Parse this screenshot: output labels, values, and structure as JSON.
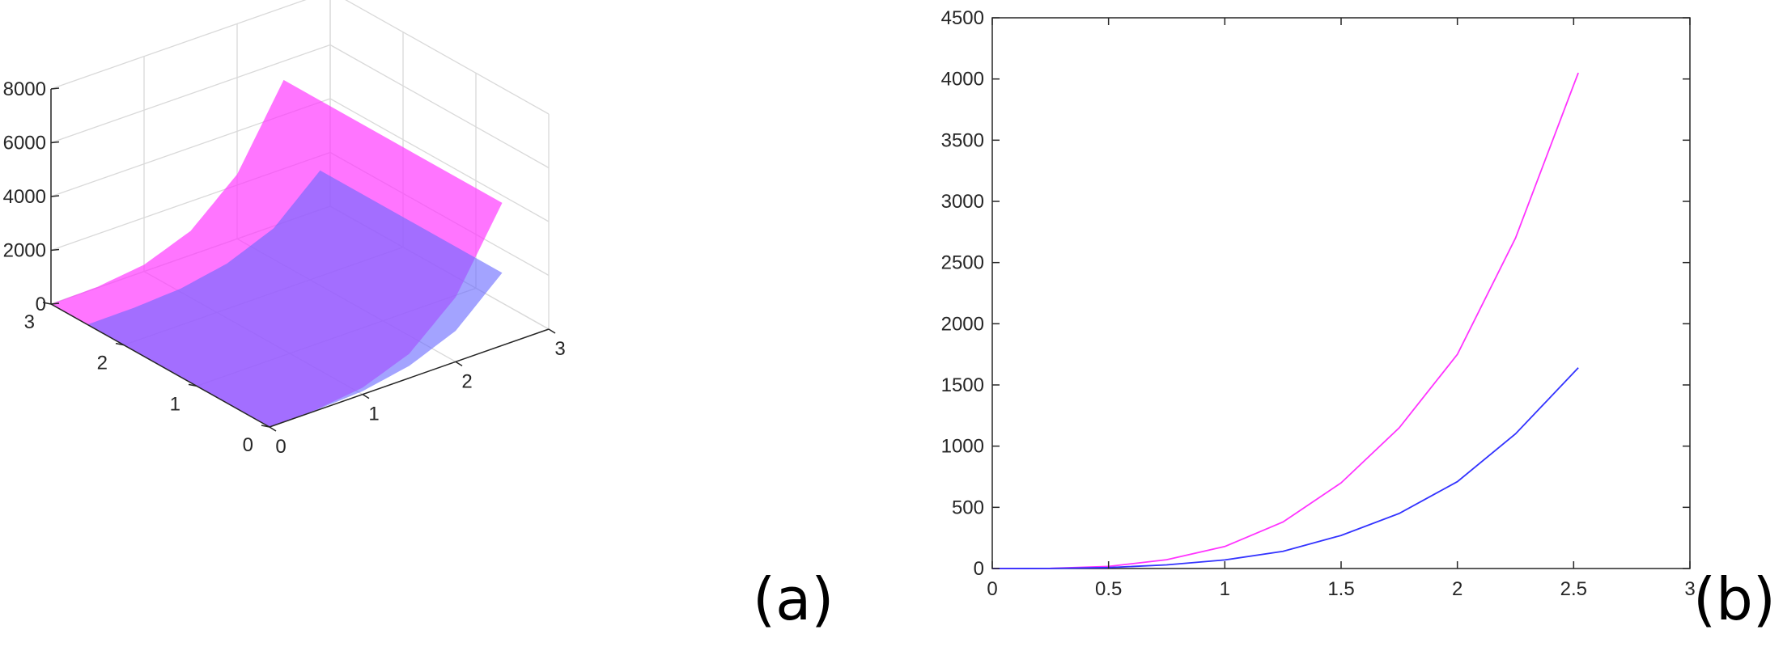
{
  "figure": {
    "panels": [
      "(a)",
      "(b)"
    ]
  },
  "chart_data": [
    {
      "type": "surface",
      "panel": "(a)",
      "title": "",
      "xlabel": "",
      "ylabel": "",
      "zlabel": "",
      "xlim": [
        0,
        3
      ],
      "ylim": [
        0,
        3
      ],
      "zlim": [
        0,
        8000
      ],
      "x_ticks": [
        "0",
        "1",
        "2",
        "3"
      ],
      "y_ticks": [
        "0",
        "1",
        "2",
        "3"
      ],
      "z_ticks": [
        "0",
        "2000",
        "4000",
        "6000",
        "8000"
      ],
      "grid": true,
      "series": [
        {
          "color": "#ff33ff",
          "x_range": [
            0,
            2.5
          ],
          "y_range": [
            0,
            3
          ],
          "z_at_x": [
            [
              0,
              0
            ],
            [
              0.5,
              35
            ],
            [
              1,
              250
            ],
            [
              1.5,
              900
            ],
            [
              2,
              2400
            ],
            [
              2.5,
              5300
            ]
          ],
          "z_at_max_x_min_y": 5300,
          "z_at_max_x_max_y": 5300
        },
        {
          "color": "#6b6bff",
          "x_range": [
            0,
            2.5
          ],
          "y_range": [
            0,
            2.5
          ],
          "z_at_x": [
            [
              0,
              0
            ],
            [
              0.5,
              18
            ],
            [
              1,
              120
            ],
            [
              1.5,
              450
            ],
            [
              2,
              1150
            ],
            [
              2.5,
              2700
            ]
          ],
          "z_at_max_x_min_y": 2700,
          "z_at_max_x_max_y": 2700
        }
      ]
    },
    {
      "type": "line",
      "panel": "(b)",
      "title": "",
      "xlabel": "",
      "ylabel": "",
      "xlim": [
        0,
        3
      ],
      "ylim": [
        0,
        4500
      ],
      "x_ticks": [
        "0",
        "0.5",
        "1",
        "1.5",
        "2",
        "2.5",
        "3"
      ],
      "y_ticks": [
        "0",
        "500",
        "1000",
        "1500",
        "2000",
        "2500",
        "3000",
        "3500",
        "4000",
        "4500"
      ],
      "grid": false,
      "series": [
        {
          "color": "#ff33ff",
          "x": [
            0,
            0.25,
            0.5,
            0.75,
            1,
            1.25,
            1.5,
            1.75,
            2,
            2.25,
            2.5,
            2.52
          ],
          "y": [
            0,
            1,
            17,
            72,
            180,
            380,
            700,
            1150,
            1750,
            2700,
            3950,
            4050
          ]
        },
        {
          "color": "#3333ff",
          "x": [
            0,
            0.25,
            0.5,
            0.75,
            1,
            1.25,
            1.5,
            1.75,
            2,
            2.25,
            2.5,
            2.52
          ],
          "y": [
            0,
            0.5,
            8,
            30,
            70,
            140,
            270,
            450,
            710,
            1100,
            1600,
            1640
          ]
        }
      ]
    }
  ]
}
